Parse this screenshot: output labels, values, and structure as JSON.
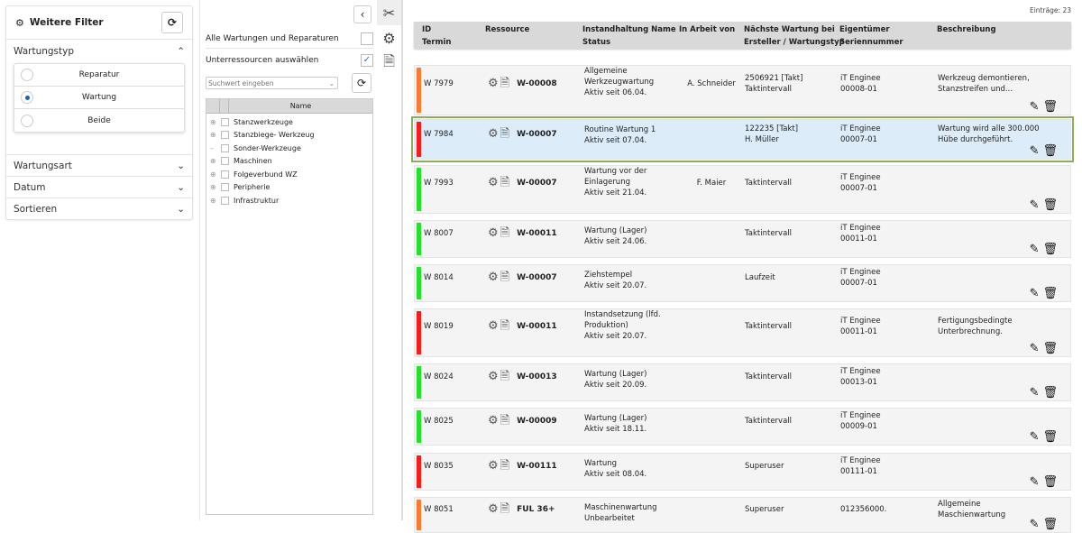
{
  "filter": {
    "title": "Weitere Filter",
    "sections": {
      "type": "Wartungstyp",
      "art": "Wartungsart",
      "date": "Datum",
      "sort": "Sortieren"
    },
    "radios": [
      {
        "label": "Reparatur",
        "checked": false
      },
      {
        "label": "Wartung",
        "checked": true
      },
      {
        "label": "Beide",
        "checked": false
      }
    ]
  },
  "resources": {
    "all_label": "Alle Wartungen und Reparaturen",
    "all_checked": false,
    "sub_label": "Unterressourcen auswählen",
    "sub_checked": true,
    "search_placeholder": "Suchwert eingeben",
    "col_name": "Name",
    "tree": [
      {
        "label": "Stanzwerkzeuge",
        "expandable": true
      },
      {
        "label": "Stanzbiege- Werkzeug",
        "expandable": true
      },
      {
        "label": "Sonder-Werkzeuge",
        "expandable": false
      },
      {
        "label": "Maschinen",
        "expandable": true
      },
      {
        "label": "Folgeverbund WZ",
        "expandable": true
      },
      {
        "label": "Peripherie",
        "expandable": true
      },
      {
        "label": "Infrastruktur",
        "expandable": true
      }
    ]
  },
  "count": "Einträge: 23",
  "headers": {
    "id": "ID",
    "termin": "Termin",
    "res": "Ressource",
    "name": "Instandhaltung Name",
    "status": "Status",
    "work": "In Arbeit von",
    "next": "Nächste Wartung bei",
    "creator": "Ersteller / Wartungstyp",
    "owner": "Eigentümer",
    "serial": "Seriennummer",
    "desc": "Beschreibung"
  },
  "colors": {
    "orange": "#ff7a30",
    "red": "#ff1a1a",
    "green": "#22e22a",
    "selected_border": "#8cad5c"
  },
  "rows": [
    {
      "id": "W 7979",
      "color": "orange",
      "code": "W-00008",
      "name": "Allgemeine Werkzeugwartung",
      "status": "Aktiv seit 06.04.",
      "work": "A. Schneider",
      "next": "2506921 [Takt]",
      "type": "Taktintervall",
      "owner": "iT Enginee",
      "serial": "00008-01",
      "desc": "Werkzeug demontieren, Stanzstreifen und..."
    },
    {
      "id": "W 7984",
      "color": "red",
      "code": "W-00007",
      "name": "Routine Wartung 1",
      "status": "Aktiv seit 07.04.",
      "work": "",
      "next": "122235 [Takt]",
      "type": "H. Müller",
      "owner": "iT Enginee",
      "serial": "00007-01",
      "desc": "Wartung wird alle 300.000 Hübe durchgeführt.",
      "selected": true
    },
    {
      "id": "W 7993",
      "color": "green",
      "code": "W-00007",
      "name": "Wartung vor der Einlagerung",
      "status": "Aktiv seit 21.04.",
      "work": "F. Maier",
      "next": "",
      "type": "Taktintervall",
      "owner": "iT Enginee",
      "serial": "00007-01",
      "desc": ""
    },
    {
      "id": "W 8007",
      "color": "green",
      "code": "W-00011",
      "name": "Wartung (Lager)",
      "status": "Aktiv seit 24.06.",
      "work": "",
      "next": "",
      "type": "Taktintervall",
      "owner": "iT Enginee",
      "serial": "00011-01",
      "desc": ""
    },
    {
      "id": "W 8014",
      "color": "green",
      "code": "W-00007",
      "name": "Ziehstempel",
      "status": "Aktiv seit 20.07.",
      "work": "",
      "next": "",
      "type": "Laufzeit",
      "owner": "iT Enginee",
      "serial": "00007-01",
      "desc": ""
    },
    {
      "id": "W 8019",
      "color": "red",
      "code": "W-00011",
      "name": "Instandsetzung (lfd. Produktion)",
      "status": "Aktiv seit 20.07.",
      "work": "",
      "next": "",
      "type": "Taktintervall",
      "owner": "iT Enginee",
      "serial": "00011-01",
      "desc": "Fertigungsbedingte Unterbrechnung."
    },
    {
      "id": "W 8024",
      "color": "green",
      "code": "W-00013",
      "name": "Wartung (Lager)",
      "status": "Aktiv seit 20.09.",
      "work": "",
      "next": "",
      "type": "Taktintervall",
      "owner": "iT Enginee",
      "serial": "00013-01",
      "desc": ""
    },
    {
      "id": "W 8025",
      "color": "green",
      "code": "W-00009",
      "name": "Wartung (Lager)",
      "status": "Aktiv seit 18.11.",
      "work": "",
      "next": "",
      "type": "Taktintervall",
      "owner": "iT Enginee",
      "serial": "00009-01",
      "desc": ""
    },
    {
      "id": "W 8035",
      "color": "red",
      "code": "W-00111",
      "name": "Wartung",
      "status": "Aktiv seit 08.04.",
      "work": "",
      "next": "",
      "type": "Superuser",
      "owner": "iT Enginee",
      "serial": "00111-01",
      "desc": ""
    },
    {
      "id": "W 8051",
      "color": "orange",
      "code": "FUL 36+",
      "name": "Maschinenwartung",
      "status": "Unbearbeitet",
      "work": "",
      "next": "",
      "type": "Superuser",
      "owner": "",
      "serial": "012356000.",
      "desc": "Allgemeine Maschienwartung"
    }
  ]
}
